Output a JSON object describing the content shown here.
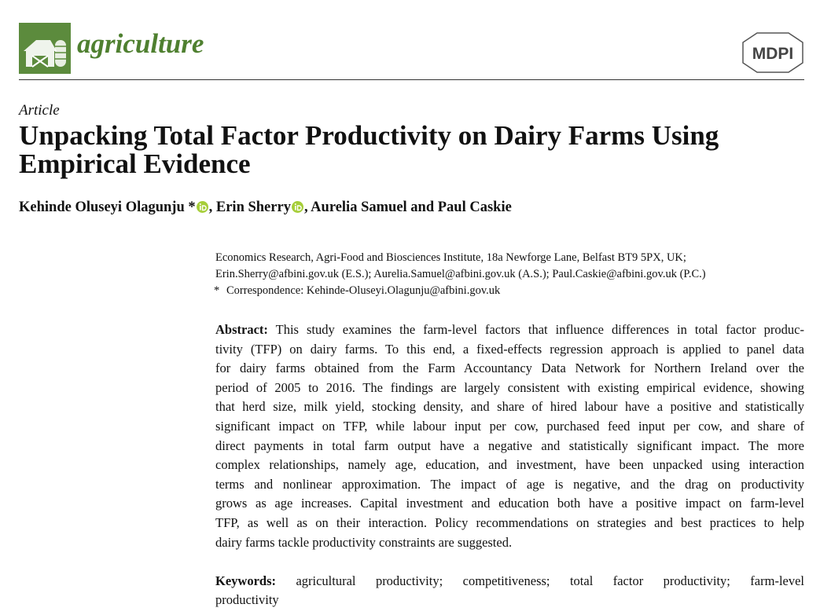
{
  "header": {
    "journal": "agriculture",
    "publisher_logo": "MDPI"
  },
  "article_type": "Article",
  "title_lines": [
    "Unpacking Total Factor Productivity on Dairy Farms Using",
    "Empirical Evidence"
  ],
  "authors": [
    "Kehinde Oluseyi Olagunju *",
    ", Erin Sherry",
    ", Aurelia Samuel and Paul Caskie"
  ],
  "affiliation": {
    "lines": [
      "Economics Research, Agri-Food and Biosciences Institute, 18a Newforge Lane, Belfast BT9 5PX, UK;",
      "Erin.Sherry@afbini.gov.uk (E.S.); Aurelia.Samuel@afbini.gov.uk (A.S.); Paul.Caskie@afbini.gov.uk (P.C.)"
    ],
    "correspondence_marker": "*",
    "correspondence": "Correspondence: Kehinde-Oluseyi.Olagunju@afbini.gov.uk"
  },
  "abstract": {
    "label": "Abstract:",
    "lines": [
      "This study examines the farm-level factors that influence differences in total factor produc-",
      "tivity (TFP) on dairy farms. To this end, a fixed-effects regression approach is applied to panel data",
      "for dairy farms obtained from the Farm Accountancy Data Network for Northern Ireland over the",
      "period of 2005 to 2016. The findings are largely consistent with existing empirical evidence, showing",
      "that herd size, milk yield, stocking density, and share of hired labour have a positive and statistically",
      "significant impact on TFP, while labour input per cow, purchased feed input per cow, and share of",
      "direct payments in total farm output have a negative and statistically significant impact. The more",
      "complex relationships, namely age, education, and investment, have been unpacked using interaction",
      "terms and nonlinear approximation.  The impact of age is negative, and the drag on productivity",
      "grows as age increases. Capital investment and education both have a positive impact on farm-level",
      "TFP, as well as on their interaction. Policy recommendations on strategies and best practices to help",
      "dairy farms tackle productivity constraints are suggested."
    ]
  },
  "keywords": {
    "label": "Keywords:",
    "lines": [
      "agricultural productivity; competitiveness; total factor productivity; farm-level",
      "productivity"
    ]
  }
}
